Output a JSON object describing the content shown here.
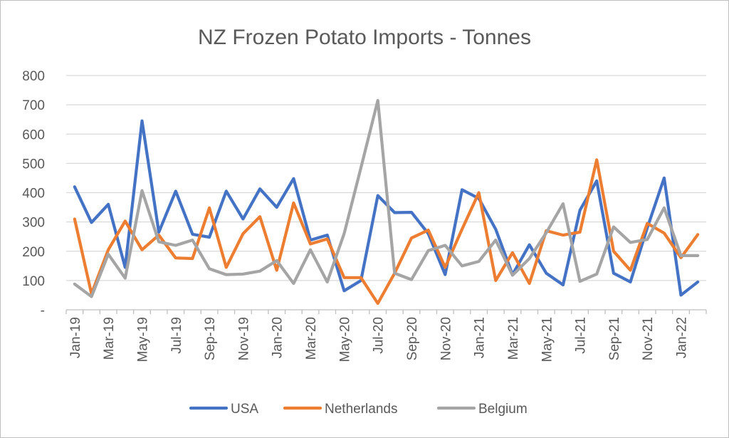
{
  "chart_data": {
    "type": "line",
    "title": "NZ Frozen Potato Imports - Tonnes",
    "xlabel": "",
    "ylabel": "",
    "ylim": [
      0,
      800
    ],
    "yticks": [
      0,
      100,
      200,
      300,
      400,
      500,
      600,
      700,
      800
    ],
    "ytick_labels": [
      "-",
      "100",
      "200",
      "300",
      "400",
      "500",
      "600",
      "700",
      "800"
    ],
    "grid": true,
    "legend_position": "bottom",
    "x": [
      "Jan-19",
      "Feb-19",
      "Mar-19",
      "Apr-19",
      "May-19",
      "Jun-19",
      "Jul-19",
      "Aug-19",
      "Sep-19",
      "Oct-19",
      "Nov-19",
      "Dec-19",
      "Jan-20",
      "Feb-20",
      "Mar-20",
      "Apr-20",
      "May-20",
      "Jun-20",
      "Jul-20",
      "Aug-20",
      "Sep-20",
      "Oct-20",
      "Nov-20",
      "Dec-20",
      "Jan-21",
      "Feb-21",
      "Mar-21",
      "Apr-21",
      "May-21",
      "Jun-21",
      "Jul-21",
      "Aug-21",
      "Sep-21",
      "Oct-21",
      "Nov-21",
      "Dec-21",
      "Jan-22",
      "Feb-22"
    ],
    "x_tick_labels": [
      "Jan-19",
      "Mar-19",
      "May-19",
      "Jul-19",
      "Sep-19",
      "Nov-19",
      "Jan-20",
      "Mar-20",
      "May-20",
      "Jul-20",
      "Sep-20",
      "Nov-20",
      "Jan-21",
      "Mar-21",
      "May-21",
      "Jul-21",
      "Sep-21",
      "Nov-21",
      "Jan-22"
    ],
    "series": [
      {
        "name": "USA",
        "color": "#4472c4",
        "values": [
          420,
          298,
          360,
          145,
          645,
          265,
          405,
          258,
          248,
          405,
          310,
          413,
          350,
          448,
          238,
          255,
          65,
          100,
          390,
          332,
          333,
          260,
          120,
          410,
          380,
          275,
          120,
          222,
          125,
          85,
          340,
          440,
          125,
          95,
          280,
          450,
          50,
          95
        ]
      },
      {
        "name": "Netherlands",
        "color": "#ed7d31",
        "values": [
          310,
          55,
          205,
          303,
          205,
          255,
          177,
          175,
          348,
          145,
          260,
          318,
          135,
          365,
          225,
          242,
          110,
          110,
          22,
          125,
          245,
          272,
          145,
          275,
          400,
          100,
          195,
          90,
          270,
          255,
          265,
          512,
          200,
          135,
          295,
          262,
          178,
          257
        ]
      },
      {
        "name": "Belgium",
        "color": "#a5a5a5",
        "values": [
          88,
          45,
          190,
          108,
          407,
          232,
          220,
          238,
          140,
          120,
          122,
          132,
          168,
          90,
          205,
          95,
          260,
          485,
          715,
          125,
          103,
          202,
          220,
          150,
          165,
          238,
          118,
          175,
          263,
          362,
          97,
          122,
          283,
          230,
          240,
          348,
          185,
          185
        ]
      }
    ]
  }
}
